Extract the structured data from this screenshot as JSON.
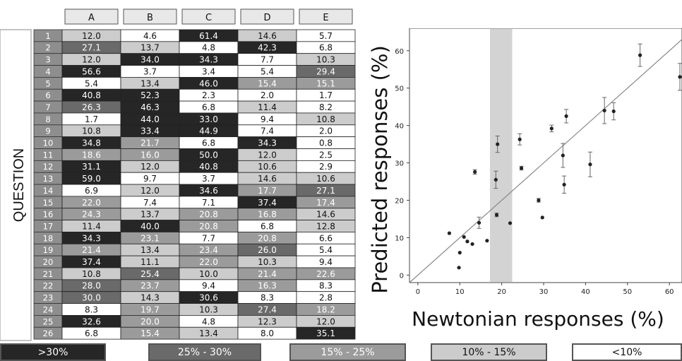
{
  "heatmap": {
    "side_label": "QUESTION",
    "columns": [
      "A",
      "B",
      "C",
      "D",
      "E"
    ],
    "rows": [
      "1",
      "2",
      "3",
      "4",
      "5",
      "6",
      "7",
      "8",
      "9",
      "10",
      "11",
      "12",
      "13",
      "14",
      "15",
      "16",
      "17",
      "18",
      "19",
      "20",
      "21",
      "22",
      "23",
      "24",
      "25",
      "26"
    ],
    "cells": [
      [
        12.0,
        4.6,
        61.4,
        14.6,
        5.7
      ],
      [
        27.1,
        13.7,
        4.8,
        42.3,
        6.8
      ],
      [
        12.0,
        34.0,
        34.3,
        7.7,
        10.3
      ],
      [
        56.6,
        3.7,
        3.4,
        5.4,
        29.4
      ],
      [
        5.4,
        13.4,
        46.0,
        15.4,
        15.1
      ],
      [
        40.8,
        52.3,
        2.3,
        2.0,
        1.7
      ],
      [
        26.3,
        46.3,
        6.8,
        11.4,
        8.2
      ],
      [
        1.7,
        44.0,
        33.0,
        9.4,
        10.8
      ],
      [
        10.8,
        33.4,
        44.9,
        7.4,
        2.0
      ],
      [
        34.8,
        21.7,
        6.8,
        34.3,
        0.8
      ],
      [
        18.6,
        16.0,
        50.0,
        12.0,
        2.5
      ],
      [
        31.1,
        12.0,
        40.8,
        10.6,
        2.9
      ],
      [
        59.0,
        9.7,
        3.7,
        14.6,
        10.6
      ],
      [
        6.9,
        12.0,
        34.6,
        17.7,
        27.1
      ],
      [
        22.0,
        7.4,
        7.1,
        37.4,
        17.4
      ],
      [
        24.3,
        13.7,
        20.8,
        16.8,
        14.6
      ],
      [
        11.4,
        40.0,
        20.8,
        6.8,
        12.8
      ],
      [
        34.3,
        23.1,
        7.7,
        20.8,
        6.6
      ],
      [
        21.4,
        13.4,
        23.4,
        26.0,
        5.4
      ],
      [
        37.4,
        11.1,
        22.0,
        10.3,
        9.4
      ],
      [
        10.8,
        25.4,
        10.0,
        21.4,
        22.6
      ],
      [
        28.0,
        23.7,
        9.4,
        16.3,
        8.3
      ],
      [
        30.0,
        14.3,
        30.6,
        8.3,
        2.8
      ],
      [
        8.3,
        19.7,
        10.3,
        27.4,
        18.2
      ],
      [
        32.6,
        20.0,
        4.8,
        12.3,
        12.0
      ],
      [
        6.8,
        15.4,
        13.4,
        8.0,
        35.1
      ]
    ],
    "display": [
      [
        "12.0",
        "4.6",
        "61.4",
        "14.6",
        "5.7"
      ],
      [
        "27.1",
        "13.7",
        "4.8",
        "42.3",
        "6.8"
      ],
      [
        "12.0",
        "34.0",
        "34.3",
        "7.7",
        "10.3"
      ],
      [
        "56.6",
        "3.7",
        "3.4",
        "5.4",
        "29.4"
      ],
      [
        "5.4",
        "13.4",
        "46.0",
        "15.4",
        "15.1"
      ],
      [
        "40.8",
        "52.3",
        "2.3",
        "2.0",
        "1.7"
      ],
      [
        "26.3",
        "46.3",
        "6.8",
        "11.4",
        "8.2"
      ],
      [
        "1.7",
        "44.0",
        "33.0",
        "9.4",
        "10.8"
      ],
      [
        "10.8",
        "33.4",
        "44.9",
        "7.4",
        "2.0"
      ],
      [
        "34.8",
        "21.7",
        "6.8",
        "34.3",
        "0.8"
      ],
      [
        "18.6",
        "16.0",
        "50.0",
        "12.0",
        "2.5"
      ],
      [
        "31.1",
        "12.0",
        "40.8",
        "10.6",
        "2.9"
      ],
      [
        "59.0",
        "9.7",
        "3.7",
        "14.6",
        "10.6"
      ],
      [
        "6.9",
        "12.0",
        "34.6",
        "17.7",
        "27.1"
      ],
      [
        "22.0",
        "7.4",
        "7.1",
        "37.4",
        "17.4"
      ],
      [
        "24.3",
        "13.7",
        "20.8",
        "16.8",
        "14.6"
      ],
      [
        "11.4",
        "40.0",
        "20.8",
        "6.8",
        "12.8"
      ],
      [
        "34.3",
        "23.1",
        "7.7",
        "20.8",
        "6.6"
      ],
      [
        "21.4",
        "13.4",
        "23.4",
        "26.0",
        "5.4"
      ],
      [
        "37.4",
        "11.1",
        "22.0",
        "10.3",
        "9.4"
      ],
      [
        "10.8",
        "25.4",
        "10.0",
        "21.4",
        "22.6"
      ],
      [
        "28.0",
        "23.7",
        "9.4",
        "16.3",
        "8.3"
      ],
      [
        "30.0",
        "14.3",
        "30.6",
        "8.3",
        "2.8"
      ],
      [
        "8.3",
        "19.7",
        "10.3",
        "27.4",
        "18.2"
      ],
      [
        "32.6",
        "20.0",
        "4.8",
        "12.3",
        "12.0"
      ],
      [
        "6.8",
        "15.4",
        "13.4",
        "8.0",
        "35.1"
      ]
    ]
  },
  "legend": {
    "items": [
      {
        "label": ">30%",
        "color": "#262626",
        "text_color": "#ffffff"
      },
      {
        "label": "25% - 30%",
        "color": "#6a6a6a",
        "text_color": "#ffffff"
      },
      {
        "label": "15% - 25%",
        "color": "#9b9b9b",
        "text_color": "#ffffff"
      },
      {
        "label": "10% - 15%",
        "color": "#cccccc",
        "text_color": "#111111"
      },
      {
        "label": "<10%",
        "color": "#ffffff",
        "text_color": "#111111"
      }
    ]
  },
  "colors": {
    "row_header": "#8e8e8e",
    "shade_band": "#d3d3d3",
    "points": "#222222",
    "diagonal": "#888888"
  },
  "chart_data": [
    {
      "type": "heatmap",
      "title": "",
      "xlabel": "",
      "ylabel": "QUESTION",
      "x_categories": [
        "A",
        "B",
        "C",
        "D",
        "E"
      ],
      "y_categories": [
        "1",
        "2",
        "3",
        "4",
        "5",
        "6",
        "7",
        "8",
        "9",
        "10",
        "11",
        "12",
        "13",
        "14",
        "15",
        "16",
        "17",
        "18",
        "19",
        "20",
        "21",
        "22",
        "23",
        "24",
        "25",
        "26"
      ],
      "color_bins": [
        ">30%",
        "25% - 30%",
        "15% - 25%",
        "10% - 15%",
        "<10%"
      ]
    },
    {
      "type": "scatter",
      "title": "",
      "xlabel": "Newtonian responses (%)",
      "ylabel": "Predicted responses (%)",
      "xlim": [
        -2,
        63
      ],
      "ylim": [
        -2,
        66
      ],
      "x_ticks": [
        "0",
        "10",
        "20",
        "30",
        "40",
        "50",
        "60"
      ],
      "y_ticks": [
        "0",
        "10",
        "20",
        "30",
        "40",
        "50",
        "60"
      ],
      "shaded_x_range": [
        17.2,
        22.5
      ],
      "reference_line": "y = x",
      "points": [
        {
          "x": 7.5,
          "y": 11.2
        },
        {
          "x": 9.8,
          "y": 2.0
        },
        {
          "x": 10.0,
          "y": 6.0
        },
        {
          "x": 11.0,
          "y": 10.2
        },
        {
          "x": 11.8,
          "y": 9.0
        },
        {
          "x": 13.0,
          "y": 8.3
        },
        {
          "x": 13.6,
          "y": 27.6,
          "err": 0.6
        },
        {
          "x": 14.6,
          "y": 14.0,
          "err": 1.5
        },
        {
          "x": 16.5,
          "y": 9.2
        },
        {
          "x": 18.6,
          "y": 25.5,
          "err": 2.3
        },
        {
          "x": 18.8,
          "y": 16.1,
          "err": 0.5
        },
        {
          "x": 19.0,
          "y": 35.0,
          "err": 2.2
        },
        {
          "x": 22.0,
          "y": 13.9
        },
        {
          "x": 24.3,
          "y": 36.3,
          "err": 1.5
        },
        {
          "x": 24.7,
          "y": 28.6,
          "err": 0.5
        },
        {
          "x": 28.8,
          "y": 20.0,
          "err": 0.5
        },
        {
          "x": 29.7,
          "y": 15.4
        },
        {
          "x": 31.9,
          "y": 39.2,
          "err": 0.9
        },
        {
          "x": 34.6,
          "y": 32.0,
          "err": 3.2
        },
        {
          "x": 34.9,
          "y": 24.2,
          "err": 2.3
        },
        {
          "x": 35.4,
          "y": 42.5,
          "err": 1.8
        },
        {
          "x": 41.1,
          "y": 29.6,
          "err": 3.3
        },
        {
          "x": 44.5,
          "y": 44.0,
          "err": 3.5
        },
        {
          "x": 46.7,
          "y": 43.8,
          "err": 2.3
        },
        {
          "x": 53.0,
          "y": 58.8,
          "err": 3.0
        },
        {
          "x": 63.0,
          "y": 53.0,
          "err": 3.6
        }
      ]
    }
  ]
}
